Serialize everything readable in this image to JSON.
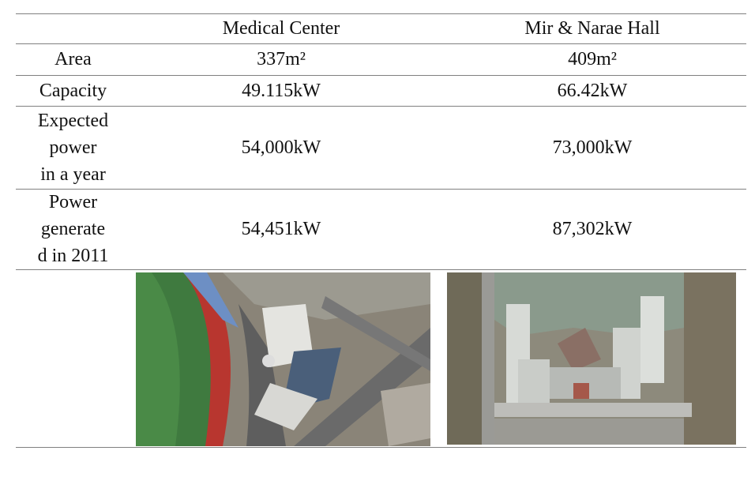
{
  "table": {
    "header": [
      "Medical Center",
      "Mir & Narae Hall"
    ],
    "rows": [
      {
        "label": [
          "Area"
        ],
        "values": [
          "337m²",
          "409m²"
        ]
      },
      {
        "label": [
          "Capacity"
        ],
        "values": [
          "49.115kW",
          "66.42kW"
        ]
      },
      {
        "label": [
          "Expected",
          "power",
          "in a year"
        ],
        "values": [
          "54,000kW",
          "73,000kW"
        ]
      },
      {
        "label": [
          "Power",
          "generate",
          "d in 2011"
        ],
        "values": [
          "54,451kW",
          "87,302kW"
        ]
      }
    ]
  }
}
